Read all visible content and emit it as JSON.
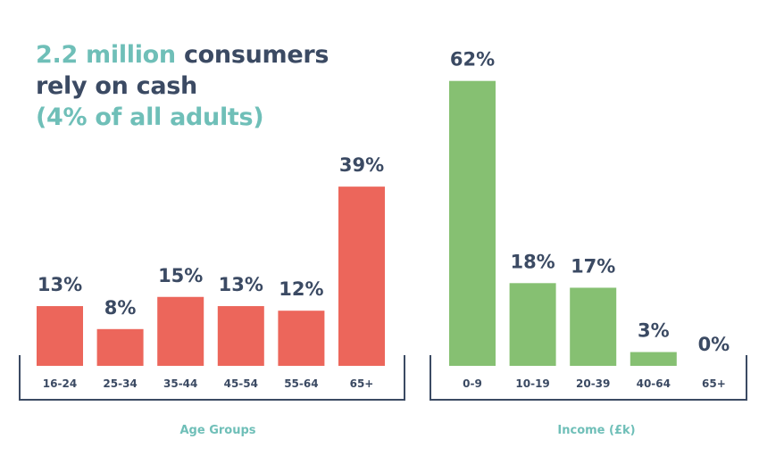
{
  "headline": {
    "line1_accent": "2.2 million",
    "line1_rest": " consumers",
    "line2": "rely on cash",
    "line3": "(4% of all adults)"
  },
  "colors": {
    "text": "#3b4a63",
    "accent": "#6fbfb8",
    "age_bar": "#ec665b",
    "income_bar": "#86c072"
  },
  "chart_data": [
    {
      "type": "bar",
      "xlabel": "Age Groups",
      "categories": [
        "16-24",
        "25-34",
        "35-44",
        "45-54",
        "55-64",
        "65+"
      ],
      "values": [
        13,
        8,
        15,
        13,
        12,
        39
      ],
      "value_labels": [
        "13%",
        "8%",
        "15%",
        "13%",
        "12%",
        "39%"
      ],
      "color": "#ec665b",
      "grid": false
    },
    {
      "type": "bar",
      "xlabel": "Income (£k)",
      "categories": [
        "0-9",
        "10-19",
        "20-39",
        "40-64",
        "65+"
      ],
      "values": [
        62,
        18,
        17,
        3,
        0
      ],
      "value_labels": [
        "62%",
        "18%",
        "17%",
        "3%",
        "0%"
      ],
      "color": "#86c072",
      "grid": false
    }
  ]
}
